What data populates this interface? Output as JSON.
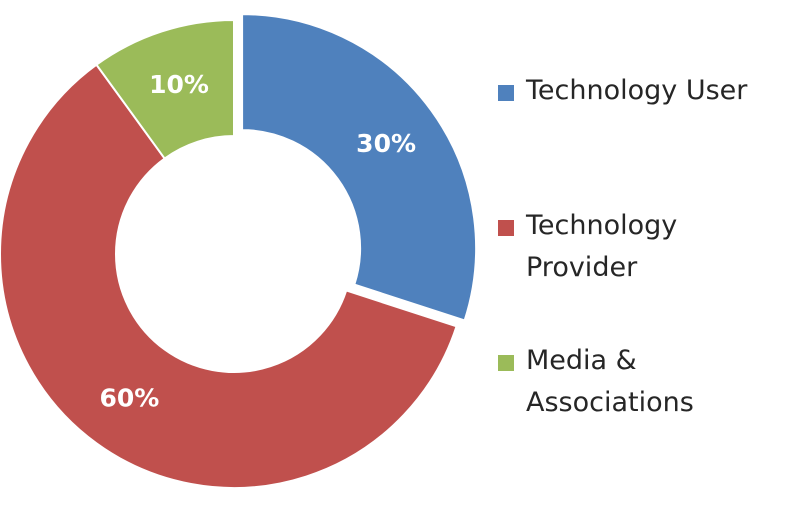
{
  "chart_data": {
    "type": "pie",
    "donut": true,
    "exploded_slice": "Technology User",
    "categories": [
      "Technology User",
      "Technology Provider",
      "Media & Associations"
    ],
    "values": [
      30,
      60,
      10
    ],
    "data_labels": [
      "30%",
      "60%",
      "10%"
    ],
    "colors": [
      "#4F81BD",
      "#C0504D",
      "#9BBB59"
    ],
    "legend_position": "right",
    "legend": [
      {
        "lines": [
          "Technology User"
        ],
        "color": "#4F81BD"
      },
      {
        "lines": [
          "Technology",
          "Provider"
        ],
        "color": "#C0504D"
      },
      {
        "lines": [
          "Media &",
          "Associations"
        ],
        "color": "#9BBB59"
      }
    ]
  }
}
